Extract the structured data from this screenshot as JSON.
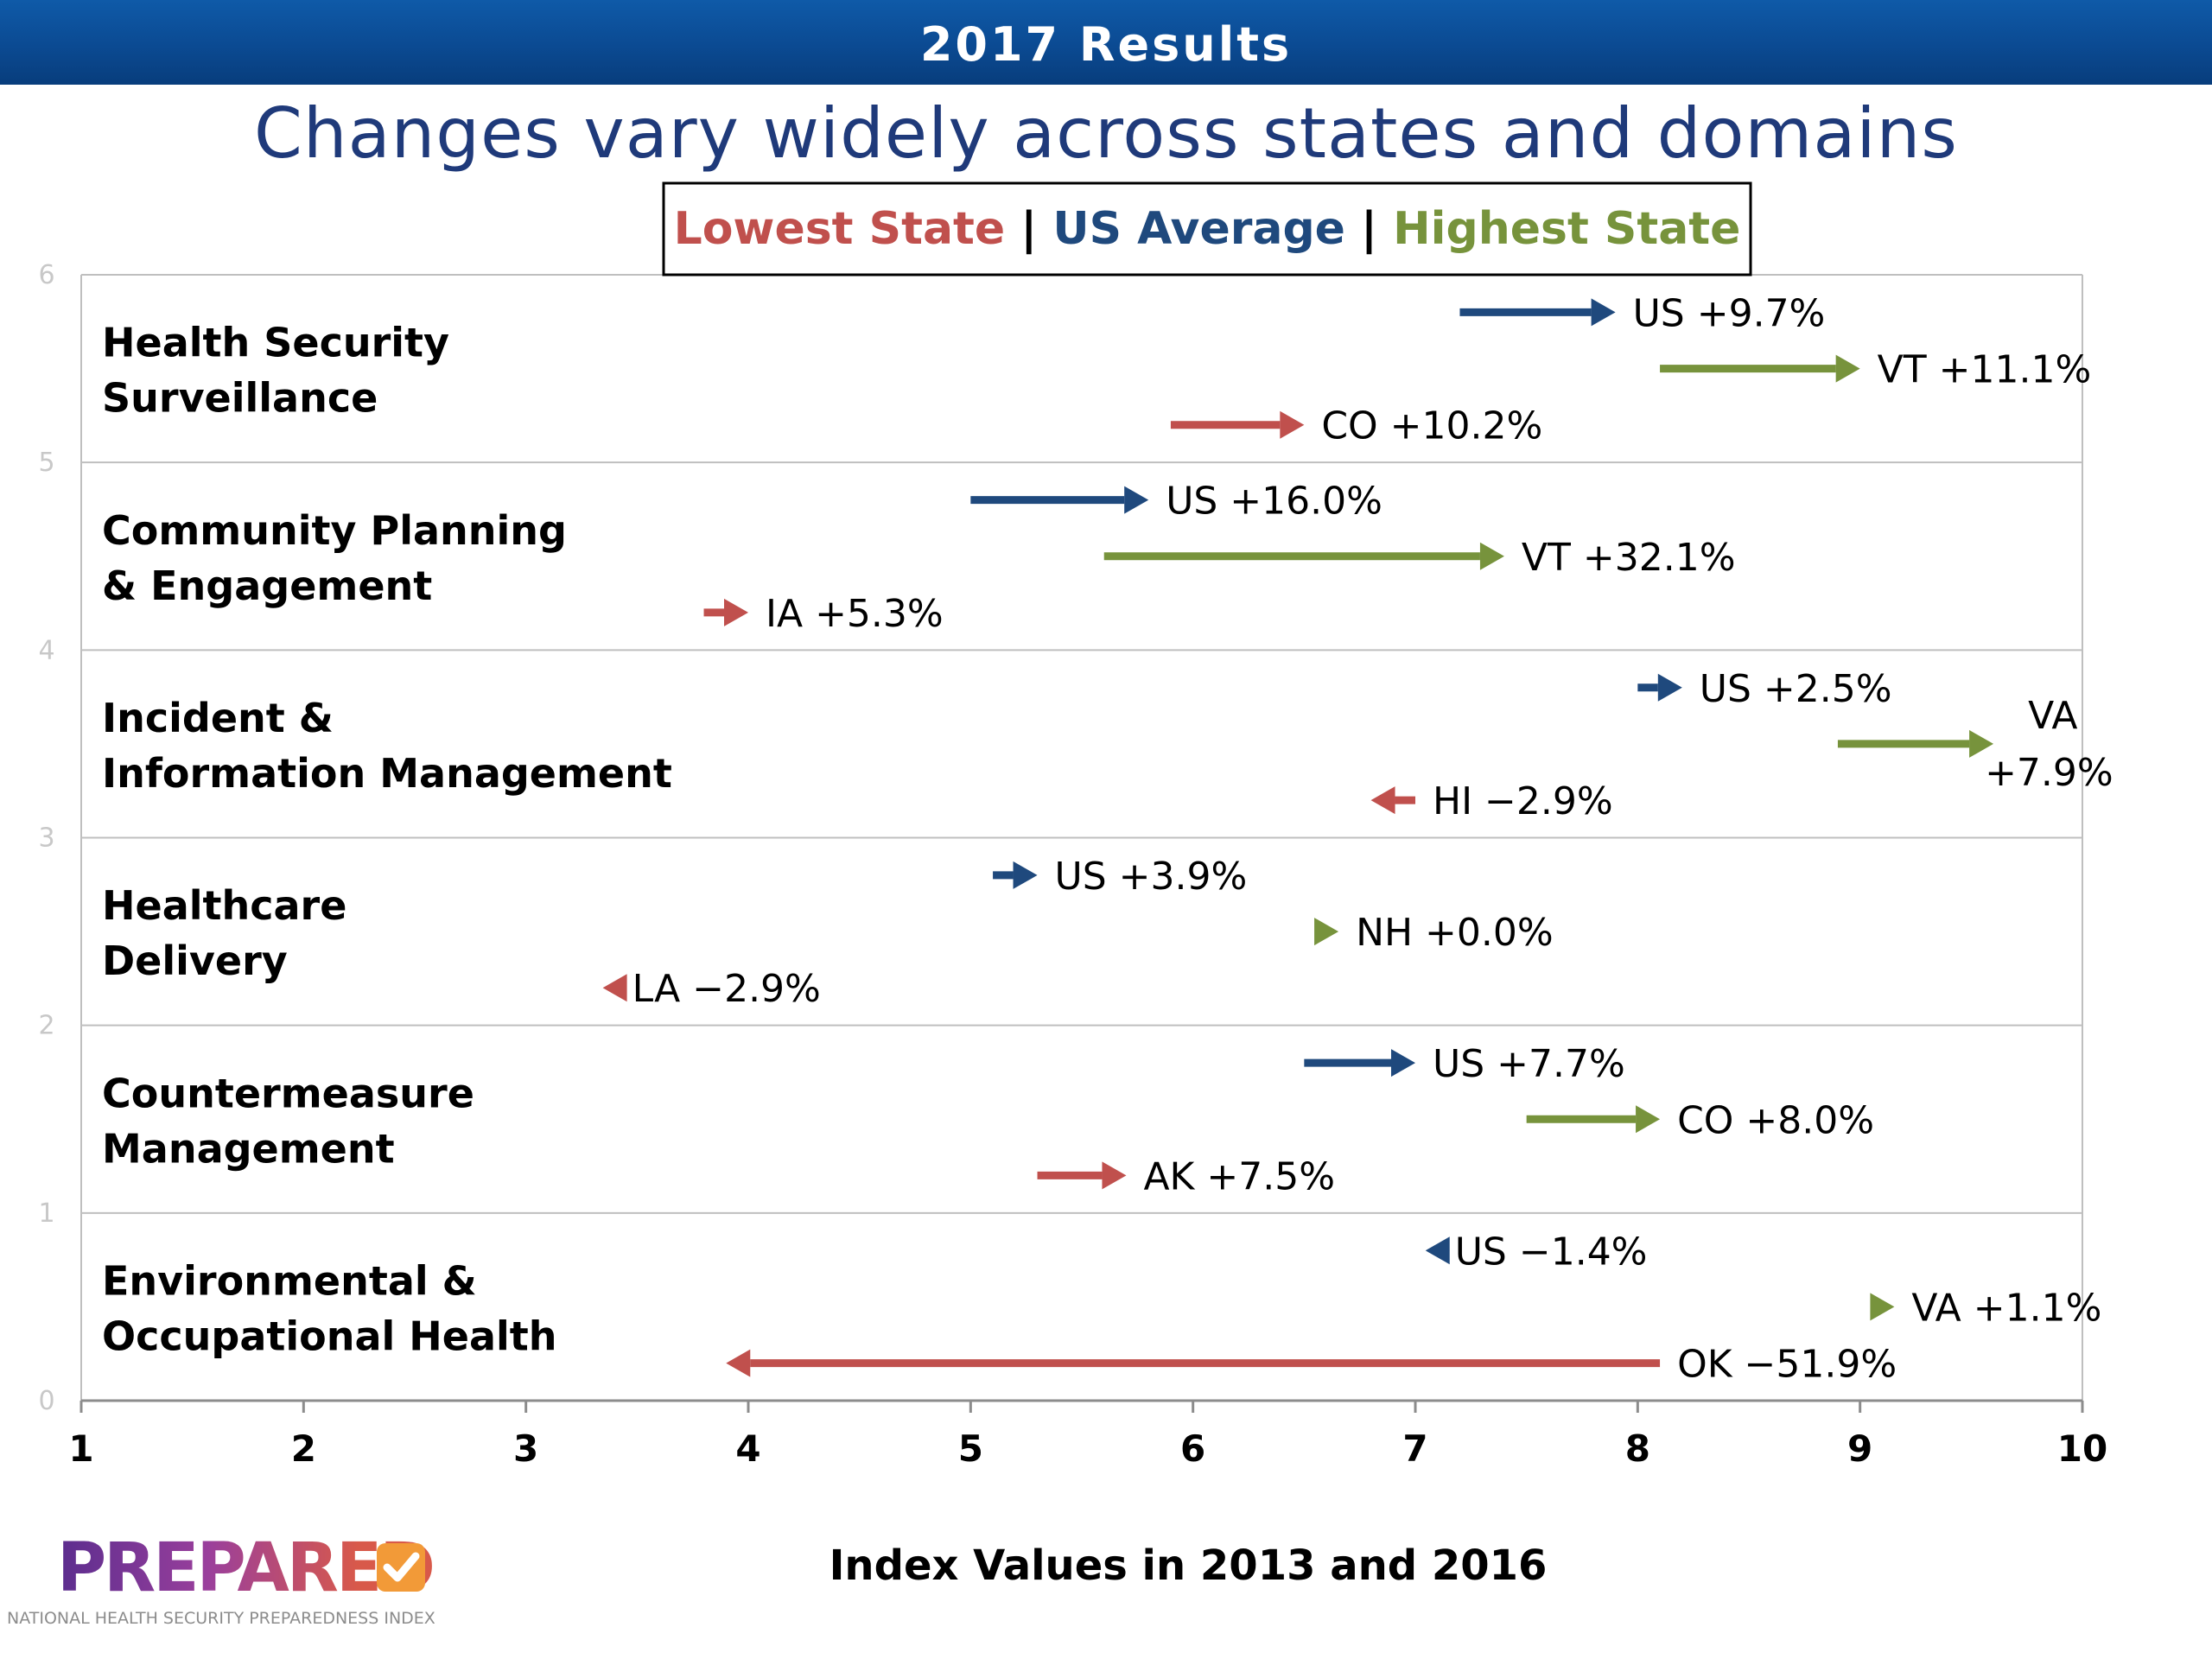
{
  "banner": {
    "title": "2017 Results"
  },
  "headline": "Changes vary widely across states and domains",
  "colors": {
    "lowest": "#c0504d",
    "us": "#1f497d",
    "highest": "#77933c",
    "grid": "#bfbfbf",
    "label": "#000000"
  },
  "logo": {
    "word": "PREPARED",
    "subtitle": "NATIONAL HEALTH SECURITY PREPAREDNESS INDEX"
  },
  "chart_data": {
    "type": "arrow-range",
    "xlabel": "Index Values in 2013 and 2016",
    "xlim": [
      1,
      10
    ],
    "xticks": [
      1,
      2,
      3,
      4,
      5,
      6,
      7,
      8,
      9,
      10
    ],
    "ylim": [
      0,
      6
    ],
    "yticks": [
      0,
      1,
      2,
      3,
      4,
      5,
      6
    ],
    "grid": "horizontal",
    "legend": {
      "placement": "top-center",
      "items": [
        {
          "label": "Lowest State",
          "color": "#c0504d"
        },
        {
          "label": "US Average",
          "color": "#1f497d"
        },
        {
          "label": "Highest State",
          "color": "#77933c"
        }
      ],
      "separator": "|"
    },
    "domains": [
      {
        "name_lines": [
          "Health Security",
          "Surveillance"
        ],
        "band": [
          5,
          6
        ],
        "series": [
          {
            "kind": "us",
            "label": "US +9.7%",
            "y": 5.8,
            "from": 7.2,
            "to": 7.9
          },
          {
            "kind": "highest",
            "label": "VT +11.1%",
            "y": 5.5,
            "from": 8.1,
            "to": 9.0
          },
          {
            "kind": "lowest",
            "label": "CO +10.2%",
            "y": 5.2,
            "from": 5.9,
            "to": 6.5
          }
        ]
      },
      {
        "name_lines": [
          "Community Planning",
          "& Engagement"
        ],
        "band": [
          4,
          5
        ],
        "series": [
          {
            "kind": "us",
            "label": "US +16.0%",
            "y": 4.8,
            "from": 5.0,
            "to": 5.8
          },
          {
            "kind": "highest",
            "label": "VT +32.1%",
            "y": 4.5,
            "from": 5.6,
            "to": 7.4
          },
          {
            "kind": "lowest",
            "label": "IA +5.3%",
            "y": 4.2,
            "from": 3.8,
            "to": 4.0
          }
        ]
      },
      {
        "name_lines": [
          "Incident &",
          "Information Management"
        ],
        "band": [
          3,
          4
        ],
        "series": [
          {
            "kind": "us",
            "label": "US +2.5%",
            "y": 3.8,
            "from": 8.0,
            "to": 8.2
          },
          {
            "kind": "highest",
            "label_lines": [
              "VA",
              "+7.9%"
            ],
            "y": 3.5,
            "from": 8.9,
            "to": 9.6
          },
          {
            "kind": "lowest",
            "label": "HI −2.9%",
            "y": 3.2,
            "from": 7.0,
            "to": 6.8
          }
        ]
      },
      {
        "name_lines": [
          "Healthcare",
          "Delivery"
        ],
        "band": [
          2,
          3
        ],
        "series": [
          {
            "kind": "us",
            "label": "US +3.9%",
            "y": 2.8,
            "from": 5.1,
            "to": 5.3
          },
          {
            "kind": "highest",
            "label": "NH +0.0%",
            "y": 2.5,
            "from": 6.6,
            "to": 6.6
          },
          {
            "kind": "lowest",
            "label": "LA −2.9%",
            "y": 2.2,
            "from": 3.4,
            "to": 3.4
          }
        ]
      },
      {
        "name_lines": [
          "Countermeasure",
          "Management"
        ],
        "band": [
          1,
          2
        ],
        "series": [
          {
            "kind": "us",
            "label": "US +7.7%",
            "y": 1.8,
            "from": 6.5,
            "to": 7.0
          },
          {
            "kind": "highest",
            "label": "CO +8.0%",
            "y": 1.5,
            "from": 7.5,
            "to": 8.1
          },
          {
            "kind": "lowest",
            "label": "AK +7.5%",
            "y": 1.2,
            "from": 5.3,
            "to": 5.7
          }
        ]
      },
      {
        "name_lines": [
          "Environmental &",
          "Occupational Health"
        ],
        "band": [
          0,
          1
        ],
        "series": [
          {
            "kind": "us",
            "label": "US −1.4%",
            "y": 0.8,
            "from": 7.1,
            "to": 7.1
          },
          {
            "kind": "highest",
            "label": "VA +1.1%",
            "y": 0.5,
            "from": 9.1,
            "to": 9.1
          },
          {
            "kind": "lowest",
            "label": "OK −51.9%",
            "y": 0.2,
            "from": 8.1,
            "to": 3.9
          }
        ]
      }
    ]
  }
}
